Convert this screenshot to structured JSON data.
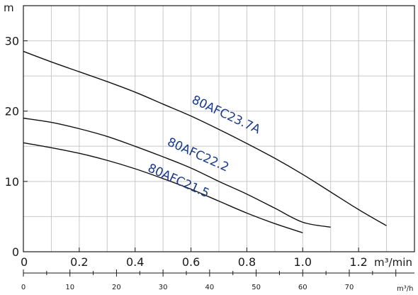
{
  "chart_data": {
    "type": "line",
    "ylabel": "m",
    "xlabel": "m³/min",
    "xlabel_secondary": "m³/h",
    "xlim": [
      0,
      1.4
    ],
    "ylim": [
      0,
      35
    ],
    "y_ticks": [
      "0",
      "10",
      "20",
      "30"
    ],
    "x_ticks": [
      "0",
      "0.2",
      "0.4",
      "0.6",
      "0.8",
      "1.0",
      "1.2"
    ],
    "x2_ticks": [
      "0",
      "10",
      "20",
      "30",
      "40",
      "50",
      "60",
      "70"
    ],
    "grid": true,
    "label_color": "#1a3a8c",
    "series": [
      {
        "name": "80AFC23.7A",
        "x": [
          0,
          0.1,
          0.2,
          0.3,
          0.4,
          0.5,
          0.6,
          0.7,
          0.8,
          0.9,
          1.0,
          1.1,
          1.2,
          1.3
        ],
        "y": [
          28.5,
          27.0,
          25.6,
          24.2,
          22.7,
          21.0,
          19.3,
          17.4,
          15.4,
          13.3,
          11.0,
          8.5,
          6.0,
          3.7
        ]
      },
      {
        "name": "80AFC22.2",
        "x": [
          0,
          0.1,
          0.2,
          0.3,
          0.4,
          0.5,
          0.6,
          0.7,
          0.8,
          0.9,
          1.0,
          1.1
        ],
        "y": [
          19.0,
          18.4,
          17.5,
          16.4,
          15.0,
          13.5,
          11.9,
          10.0,
          8.2,
          6.2,
          4.2,
          3.5
        ]
      },
      {
        "name": "80AFC21.5",
        "x": [
          0,
          0.1,
          0.2,
          0.3,
          0.4,
          0.5,
          0.6,
          0.7,
          0.8,
          0.9,
          1.0
        ],
        "y": [
          15.5,
          14.8,
          14.0,
          13.0,
          11.8,
          10.4,
          8.9,
          7.2,
          5.5,
          4.0,
          2.7
        ]
      }
    ]
  }
}
